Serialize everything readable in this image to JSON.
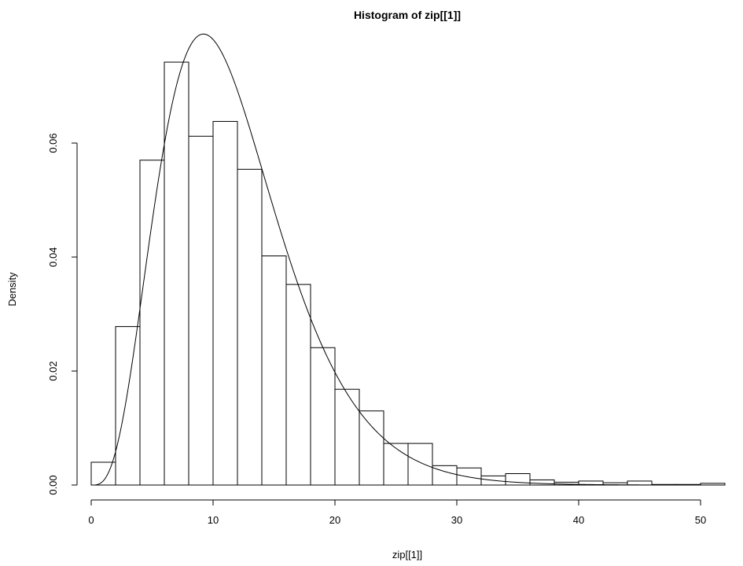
{
  "chart_data": {
    "type": "bar",
    "title": "Histogram of zip[[1]]",
    "xlabel": "zip[[1]]",
    "ylabel": "Density",
    "xlim": [
      0,
      52
    ],
    "ylim": [
      0,
      0.075
    ],
    "x_ticks": [
      0,
      10,
      20,
      30,
      40,
      50
    ],
    "x_tick_labels": [
      "0",
      "10",
      "20",
      "30",
      "40",
      "50"
    ],
    "y_ticks": [
      0,
      0.02,
      0.04,
      0.06
    ],
    "y_tick_labels": [
      "0.00",
      "0.02",
      "0.04",
      "0.06"
    ],
    "bin_edges": [
      0,
      2,
      4,
      6,
      8,
      10,
      12,
      14,
      16,
      18,
      20,
      22,
      24,
      26,
      28,
      30,
      32,
      34,
      36,
      38,
      40,
      42,
      44,
      46,
      48,
      50,
      52
    ],
    "density": [
      0.004,
      0.0278,
      0.057,
      0.0742,
      0.0612,
      0.0638,
      0.0554,
      0.0402,
      0.0352,
      0.0241,
      0.0168,
      0.013,
      0.0073,
      0.0073,
      0.0034,
      0.003,
      0.0016,
      0.002,
      0.0009,
      0.0005,
      0.0007,
      0.0004,
      0.0007,
      0.0001,
      0.0001,
      0.0003
    ],
    "curve": {
      "type": "gamma",
      "shape": 4.5,
      "rate": 0.38
    },
    "grid": false
  }
}
